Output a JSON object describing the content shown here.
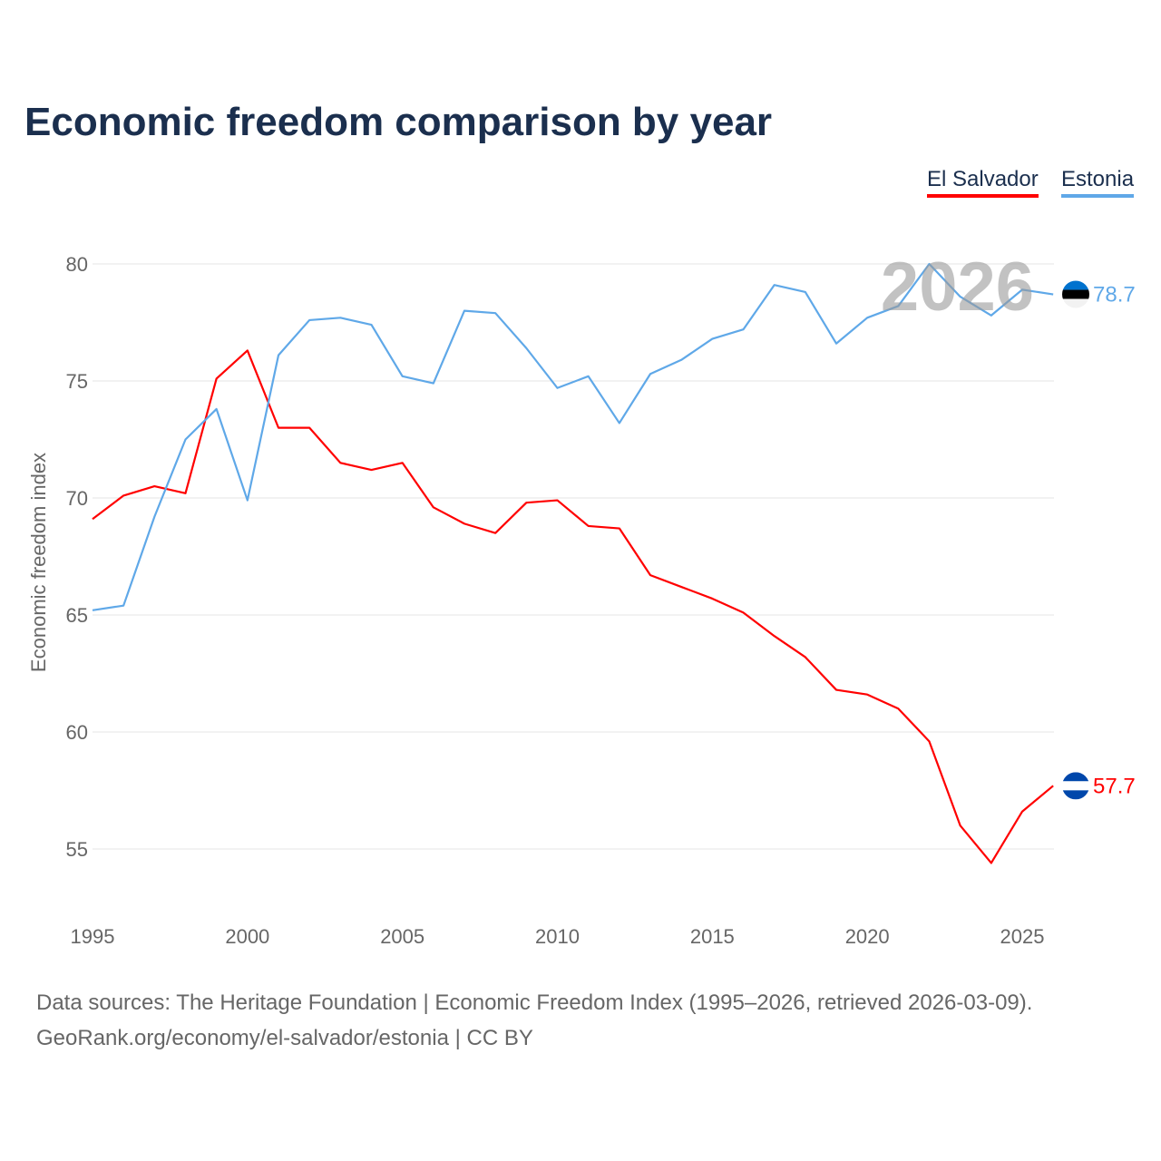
{
  "title": "Economic freedom comparison by year",
  "footer": {
    "line1": "Data sources: The Heritage Foundation | Economic Freedom Index (1995–2026, retrieved 2026-03-09).",
    "line2": "GeoRank.org/economy/el-salvador/estonia | CC BY"
  },
  "chart_data": {
    "type": "line",
    "title": "Economic freedom comparison by year",
    "ylabel": "Economic freedom index",
    "xlabel": "",
    "ylim": [
      52,
      81
    ],
    "xlim": [
      1995,
      2026
    ],
    "yticks": [
      "55",
      "60",
      "65",
      "70",
      "75",
      "80"
    ],
    "xticks": [
      "1995",
      "2000",
      "2005",
      "2010",
      "2015",
      "2020",
      "2025"
    ],
    "watermark": "2026",
    "legend_placement": "top-right",
    "x": [
      1995,
      1996,
      1997,
      1998,
      1999,
      2000,
      2001,
      2002,
      2003,
      2004,
      2005,
      2006,
      2007,
      2008,
      2009,
      2010,
      2011,
      2012,
      2013,
      2014,
      2015,
      2016,
      2017,
      2018,
      2019,
      2020,
      2021,
      2022,
      2023,
      2024,
      2025,
      2026
    ],
    "series": [
      {
        "name": "El Salvador",
        "color": "#ff0000",
        "end_label": "57.7",
        "values": [
          69.1,
          70.1,
          70.5,
          70.2,
          75.1,
          76.3,
          73.0,
          73.0,
          71.5,
          71.2,
          71.5,
          69.6,
          68.9,
          68.5,
          69.8,
          69.9,
          68.8,
          68.7,
          66.7,
          66.2,
          65.7,
          65.1,
          64.1,
          63.2,
          61.8,
          61.6,
          61.0,
          59.6,
          56.0,
          54.4,
          56.6,
          57.7
        ]
      },
      {
        "name": "Estonia",
        "color": "#5fa8e8",
        "end_label": "78.7",
        "values": [
          65.2,
          65.4,
          69.2,
          72.5,
          73.8,
          69.9,
          76.1,
          77.6,
          77.7,
          77.4,
          75.2,
          74.9,
          78.0,
          77.9,
          76.4,
          74.7,
          75.2,
          73.2,
          75.3,
          75.9,
          76.8,
          77.2,
          79.1,
          78.8,
          76.6,
          77.7,
          78.2,
          80.0,
          78.6,
          77.8,
          78.9,
          78.7
        ]
      }
    ]
  }
}
